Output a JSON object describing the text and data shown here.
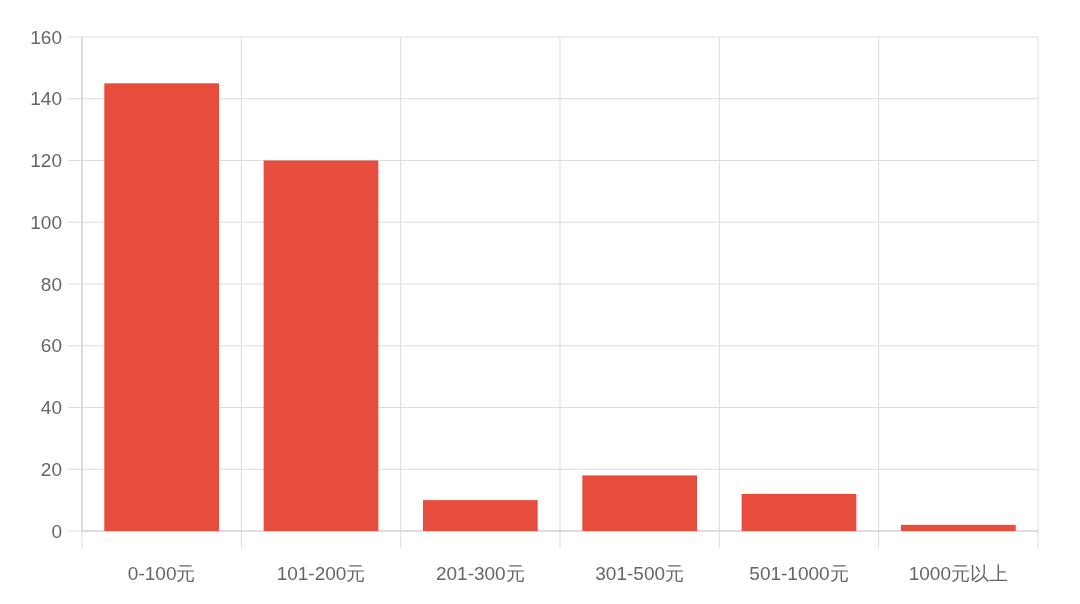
{
  "chart_data": {
    "type": "bar",
    "categories": [
      "0-100元",
      "101-200元",
      "201-300元",
      "301-500元",
      "501-1000元",
      "1000元以上"
    ],
    "values": [
      145,
      120,
      10,
      18,
      12,
      2
    ],
    "color": "#e64d3d",
    "ylim": [
      0,
      160
    ],
    "yticks": [
      0,
      20,
      40,
      60,
      80,
      100,
      120,
      140,
      160
    ],
    "grid": true
  }
}
